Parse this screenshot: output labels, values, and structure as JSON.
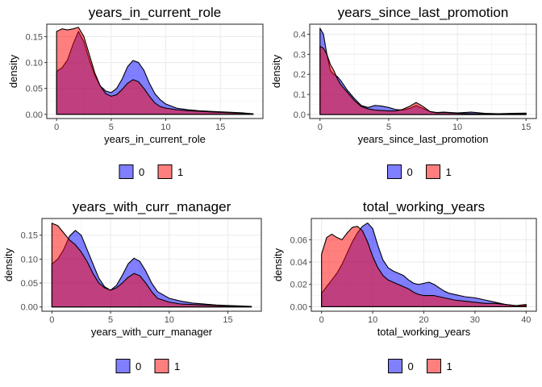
{
  "legend": {
    "title": "",
    "entries": [
      {
        "label": "0",
        "color": "#0000FF"
      },
      {
        "label": "1",
        "color": "#FF0000"
      }
    ]
  },
  "chart_data": [
    {
      "type": "area",
      "title": "years_in_current_role",
      "xlabel": "years_in_current_role",
      "ylabel": "density",
      "xlim": [
        -0.9,
        18.9
      ],
      "ylim": [
        -0.008,
        0.174
      ],
      "xticks": [
        0,
        5,
        10,
        15
      ],
      "yticks": [
        0.0,
        0.05,
        0.1,
        0.15
      ],
      "ytick_labels": [
        "0.00",
        "0.05",
        "0.10",
        "0.15"
      ],
      "grid": true,
      "legend_position": "bottom",
      "series": [
        {
          "name": "0",
          "color": "#0000FF",
          "x": [
            0,
            0.5,
            1,
            1.5,
            2,
            2.5,
            3,
            3.5,
            4,
            4.5,
            5,
            5.5,
            6,
            6.5,
            7,
            7.5,
            8,
            8.5,
            9,
            9.5,
            10,
            11,
            12,
            13,
            14,
            15,
            16,
            17,
            18
          ],
          "y": [
            0.083,
            0.09,
            0.105,
            0.135,
            0.16,
            0.14,
            0.105,
            0.075,
            0.055,
            0.045,
            0.042,
            0.05,
            0.068,
            0.092,
            0.104,
            0.1,
            0.085,
            0.06,
            0.04,
            0.028,
            0.02,
            0.012,
            0.009,
            0.007,
            0.006,
            0.005,
            0.004,
            0.003,
            0.001
          ]
        },
        {
          "name": "1",
          "color": "#FF0000",
          "x": [
            0,
            0.5,
            1,
            1.5,
            2,
            2.5,
            3,
            3.5,
            4,
            4.5,
            5,
            5.5,
            6,
            6.5,
            7,
            7.5,
            8,
            8.5,
            9,
            9.5,
            10,
            11,
            12,
            13,
            14,
            15,
            16,
            17,
            18
          ],
          "y": [
            0.16,
            0.165,
            0.163,
            0.165,
            0.168,
            0.15,
            0.115,
            0.08,
            0.055,
            0.04,
            0.035,
            0.038,
            0.048,
            0.06,
            0.067,
            0.063,
            0.05,
            0.035,
            0.022,
            0.015,
            0.012,
            0.009,
            0.007,
            0.006,
            0.005,
            0.004,
            0.003,
            0.002,
            0.001
          ]
        }
      ]
    },
    {
      "type": "area",
      "title": "years_since_last_promotion",
      "xlabel": "years_since_last_promotion",
      "ylabel": "density",
      "xlim": [
        -0.75,
        15.75
      ],
      "ylim": [
        -0.02,
        0.45
      ],
      "xticks": [
        0,
        5,
        10,
        15
      ],
      "yticks": [
        0.0,
        0.1,
        0.2,
        0.3,
        0.4
      ],
      "ytick_labels": [
        "0.0",
        "0.1",
        "0.2",
        "0.3",
        "0.4"
      ],
      "grid": true,
      "legend_position": "bottom",
      "series": [
        {
          "name": "0",
          "color": "#0000FF",
          "x": [
            0,
            0.25,
            0.5,
            0.75,
            1,
            1.25,
            1.5,
            2,
            2.5,
            3,
            3.5,
            4,
            4.5,
            5,
            5.5,
            6,
            6.5,
            7,
            7.5,
            8,
            8.5,
            9,
            10,
            11,
            12,
            13,
            14,
            15
          ],
          "y": [
            0.43,
            0.4,
            0.3,
            0.22,
            0.2,
            0.19,
            0.17,
            0.12,
            0.08,
            0.045,
            0.035,
            0.045,
            0.042,
            0.035,
            0.025,
            0.022,
            0.03,
            0.045,
            0.03,
            0.015,
            0.01,
            0.012,
            0.008,
            0.012,
            0.006,
            0.004,
            0.006,
            0.007
          ]
        },
        {
          "name": "1",
          "color": "#FF0000",
          "x": [
            0,
            0.25,
            0.5,
            0.75,
            1,
            1.25,
            1.5,
            2,
            2.5,
            3,
            3.5,
            4,
            4.5,
            5,
            5.5,
            6,
            6.5,
            7,
            7.5,
            8,
            8.5,
            9,
            10,
            11,
            12,
            13,
            14,
            15
          ],
          "y": [
            0.34,
            0.33,
            0.3,
            0.25,
            0.22,
            0.18,
            0.15,
            0.11,
            0.07,
            0.04,
            0.028,
            0.022,
            0.02,
            0.018,
            0.018,
            0.025,
            0.04,
            0.06,
            0.04,
            0.015,
            0.008,
            0.01,
            0.006,
            0.004,
            0.003,
            0.003,
            0.004,
            0.005
          ]
        }
      ]
    },
    {
      "type": "area",
      "title": "years_with_curr_manager",
      "xlabel": "years_with_curr_manager",
      "ylabel": "density",
      "xlim": [
        -0.85,
        17.85
      ],
      "ylim": [
        -0.009,
        0.185
      ],
      "xticks": [
        0,
        5,
        10,
        15
      ],
      "yticks": [
        0.0,
        0.05,
        0.1,
        0.15
      ],
      "ytick_labels": [
        "0.00",
        "0.05",
        "0.10",
        "0.15"
      ],
      "grid": true,
      "legend_position": "bottom",
      "series": [
        {
          "name": "0",
          "color": "#0000FF",
          "x": [
            0,
            0.5,
            1,
            1.5,
            2,
            2.5,
            3,
            3.5,
            4,
            4.5,
            5,
            5.5,
            6,
            6.5,
            7,
            7.5,
            8,
            8.5,
            9,
            10,
            11,
            12,
            13,
            14,
            15,
            16,
            17
          ],
          "y": [
            0.09,
            0.1,
            0.12,
            0.148,
            0.16,
            0.15,
            0.12,
            0.09,
            0.06,
            0.042,
            0.035,
            0.045,
            0.066,
            0.09,
            0.102,
            0.095,
            0.075,
            0.05,
            0.032,
            0.018,
            0.012,
            0.008,
            0.006,
            0.004,
            0.003,
            0.002,
            0.001
          ]
        },
        {
          "name": "1",
          "color": "#FF0000",
          "x": [
            0,
            0.5,
            1,
            1.5,
            2,
            2.5,
            3,
            3.5,
            4,
            4.5,
            5,
            5.5,
            6,
            6.5,
            7,
            7.5,
            8,
            8.5,
            9,
            10,
            11,
            12,
            13,
            14,
            15,
            16,
            17
          ],
          "y": [
            0.175,
            0.17,
            0.155,
            0.14,
            0.13,
            0.115,
            0.095,
            0.07,
            0.05,
            0.04,
            0.035,
            0.04,
            0.05,
            0.062,
            0.07,
            0.065,
            0.05,
            0.032,
            0.018,
            0.01,
            0.006,
            0.005,
            0.004,
            0.003,
            0.002,
            0.001,
            0.001
          ]
        }
      ]
    },
    {
      "type": "area",
      "title": "total_working_years",
      "xlabel": "total_working_years",
      "ylabel": "density",
      "xlim": [
        -2,
        42
      ],
      "ylim": [
        -0.004,
        0.079
      ],
      "xticks": [
        0,
        10,
        20,
        30,
        40
      ],
      "yticks": [
        0.0,
        0.02,
        0.04,
        0.06
      ],
      "ytick_labels": [
        "0.00",
        "0.02",
        "0.04",
        "0.06"
      ],
      "grid": true,
      "legend_position": "bottom",
      "series": [
        {
          "name": "0",
          "color": "#0000FF",
          "x": [
            0,
            1,
            2,
            3,
            4,
            5,
            6,
            7,
            8,
            9,
            10,
            11,
            12,
            13,
            14,
            15,
            16,
            17,
            18,
            19,
            20,
            21,
            22,
            23,
            24,
            25,
            26,
            28,
            30,
            32,
            34,
            36,
            38,
            40
          ],
          "y": [
            0.012,
            0.018,
            0.024,
            0.03,
            0.038,
            0.048,
            0.058,
            0.066,
            0.072,
            0.075,
            0.07,
            0.055,
            0.042,
            0.035,
            0.032,
            0.03,
            0.028,
            0.024,
            0.021,
            0.02,
            0.021,
            0.022,
            0.02,
            0.017,
            0.014,
            0.012,
            0.011,
            0.009,
            0.008,
            0.006,
            0.004,
            0.002,
            0.001,
            0.001
          ]
        },
        {
          "name": "1",
          "color": "#FF0000",
          "x": [
            0,
            1,
            2,
            3,
            4,
            5,
            6,
            7,
            8,
            9,
            10,
            11,
            12,
            13,
            14,
            15,
            16,
            17,
            18,
            19,
            20,
            21,
            22,
            23,
            24,
            25,
            26,
            28,
            30,
            32,
            34,
            36,
            38,
            40
          ],
          "y": [
            0.047,
            0.062,
            0.065,
            0.062,
            0.06,
            0.066,
            0.071,
            0.072,
            0.068,
            0.058,
            0.045,
            0.035,
            0.028,
            0.024,
            0.022,
            0.02,
            0.018,
            0.016,
            0.013,
            0.011,
            0.01,
            0.01,
            0.01,
            0.009,
            0.008,
            0.007,
            0.006,
            0.005,
            0.004,
            0.003,
            0.003,
            0.002,
            0.001,
            0.002
          ]
        }
      ]
    }
  ]
}
